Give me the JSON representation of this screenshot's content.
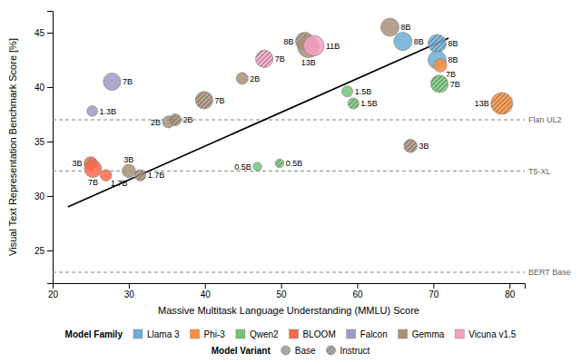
{
  "chart_data": {
    "type": "scatter",
    "xlabel": "Massive Multitask Language Understanding (MMLU) Score",
    "ylabel": "Visual Text Representation Benchmark Score [%]",
    "xlim": [
      20,
      82
    ],
    "ylim": [
      22,
      47
    ],
    "xticks": [
      20,
      30,
      40,
      50,
      60,
      70,
      80
    ],
    "yticks": [
      25,
      30,
      35,
      40,
      45
    ],
    "legend": "bottom",
    "legend_title": "Model Family",
    "variant_legend": {
      "title": "Model Variant",
      "labels": [
        "Base",
        "Instruct"
      ]
    },
    "reference_lines": [
      {
        "y": 37.0,
        "label": "Flan UL2"
      },
      {
        "y": 32.3,
        "label": "T5-XL"
      },
      {
        "y": 23.0,
        "label": "BERT Base"
      }
    ],
    "regression_line": {
      "x": [
        22,
        72
      ],
      "y": [
        29.0,
        44.5
      ]
    },
    "series": [
      {
        "name": "Llama 3",
        "color": "#6baed6",
        "x": [
          66.0,
          70.5,
          70.5
        ],
        "values": [
          44.2,
          44.0,
          42.5
        ],
        "sizes": [
          8,
          8,
          8
        ],
        "instruct": [
          false,
          true,
          false
        ],
        "labels": [
          "8B",
          "8B",
          "8B"
        ]
      },
      {
        "name": "Phi-3",
        "color": "#fd8d3c",
        "x": [
          70.9,
          79.0
        ],
        "values": [
          42.0,
          38.5
        ],
        "sizes": [
          3,
          13
        ],
        "instruct": [
          false,
          true
        ],
        "labels": [
          "7B",
          "13B"
        ]
      },
      {
        "name": "Qwen2",
        "color": "#74c476",
        "x": [
          70.8,
          46.9,
          49.8,
          58.7,
          59.5
        ],
        "values": [
          40.3,
          32.7,
          33.0,
          39.6,
          38.5
        ],
        "sizes": [
          7,
          0.5,
          0.5,
          1.5,
          1.5
        ],
        "instruct": [
          true,
          false,
          true,
          false,
          true
        ],
        "labels": [
          "7B",
          "0.5B",
          "0.5B",
          "1.5B",
          "1.5B"
        ]
      },
      {
        "name": "BLOOM",
        "color": "#fb6a4a",
        "x": [
          25.0,
          25.3,
          27.0
        ],
        "values": [
          33.0,
          32.5,
          31.9
        ],
        "sizes": [
          3,
          7,
          1.7
        ],
        "instruct": [
          true,
          false,
          false
        ],
        "labels": [
          "3B",
          "7B",
          "1.7B"
        ]
      },
      {
        "name": "Falcon",
        "color": "#9e9ac8",
        "x": [
          27.8,
          25.2
        ],
        "values": [
          40.5,
          37.8
        ],
        "sizes": [
          7,
          1.3
        ],
        "instruct": [
          false,
          false
        ],
        "labels": [
          "7B",
          "1.3B"
        ]
      },
      {
        "name": "Gemma",
        "color": "#a8917a",
        "x": [
          53.1,
          53.6,
          64.3,
          39.9,
          35.2,
          36.1,
          67.0,
          44.9,
          30.0,
          31.5
        ],
        "values": [
          44.2,
          43.7,
          45.5,
          38.8,
          36.8,
          37.0,
          34.6,
          40.8,
          32.3,
          31.9
        ],
        "sizes": [
          8,
          13,
          8,
          7,
          2,
          2,
          3,
          2,
          3,
          1.7
        ],
        "instruct": [
          true,
          false,
          false,
          true,
          false,
          true,
          true,
          false,
          false,
          true
        ],
        "labels": [
          "8B",
          "13B",
          "8B",
          "7B",
          "2B",
          "2B",
          "3B",
          "2B",
          "3B",
          "1.7B"
        ]
      },
      {
        "name": "Vicuna v1.5",
        "color": "#f4a0c0",
        "x": [
          47.8,
          54.3
        ],
        "values": [
          42.6,
          43.8
        ],
        "sizes": [
          7,
          11
        ],
        "instruct": [
          true,
          false
        ],
        "labels": [
          "7B",
          "11B"
        ]
      }
    ]
  }
}
